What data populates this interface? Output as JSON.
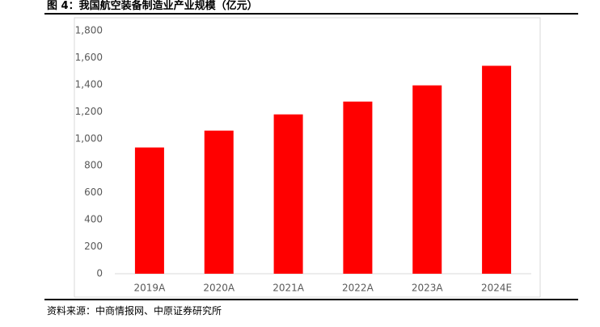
{
  "chart_data": {
    "type": "bar",
    "title": "图 4：我国航空装备制造业产业规模（亿元）",
    "source": "资料来源：中商情报网、中原证券研究所",
    "categories": [
      "2019A",
      "2020A",
      "2021A",
      "2022A",
      "2023A",
      "2024E"
    ],
    "values": [
      935,
      1060,
      1180,
      1275,
      1395,
      1540
    ],
    "color": "#ff0000",
    "ylim": [
      0,
      1800
    ],
    "yticks": [
      0,
      200,
      400,
      600,
      800,
      {
        "value": 1000,
        "label": "1,000"
      },
      {
        "value": 1200,
        "label": "1,200"
      },
      {
        "value": 1400,
        "label": "1,400"
      },
      {
        "value": 1600,
        "label": "1,600"
      },
      {
        "value": 1800,
        "label": "1,800"
      }
    ],
    "grid": false
  }
}
